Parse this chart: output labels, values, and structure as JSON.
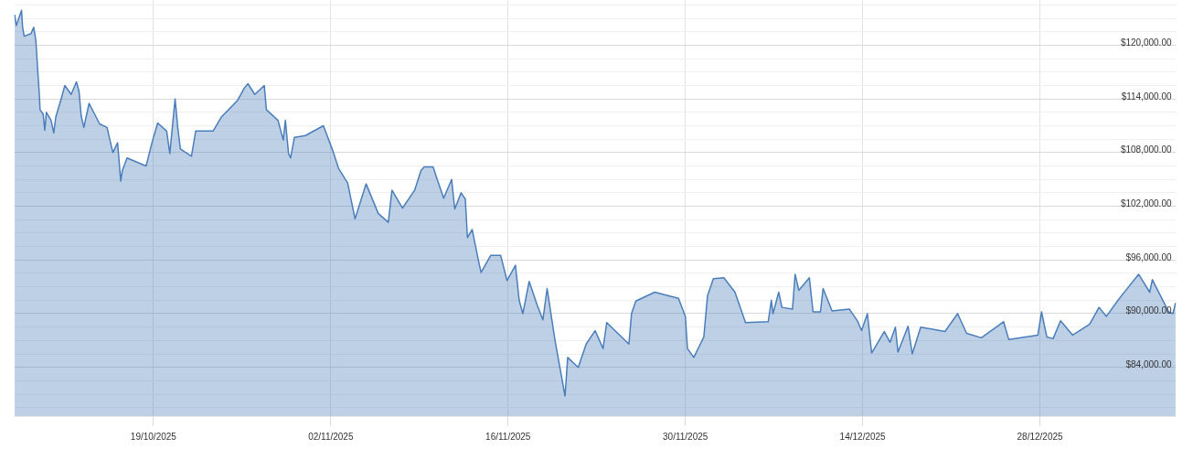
{
  "chart_data": {
    "type": "area",
    "x": [
      "2025-10-08T01:00",
      "2025-10-08T04:00",
      "2025-10-08T14:00",
      "2025-10-08T16:00",
      "2025-10-08T19:00",
      "2025-10-09T08:00",
      "2025-10-09T13:00",
      "2025-10-09T17:00",
      "2025-10-09T21:00",
      "2025-10-10T00:00",
      "2025-10-10T01:00",
      "2025-10-10T07:00",
      "2025-10-10T10:00",
      "2025-10-10T13:00",
      "2025-10-10T22:00",
      "2025-10-11T03:00",
      "2025-10-11T07:00",
      "2025-10-11T18:00",
      "2025-10-12T00:00",
      "2025-10-12T12:00",
      "2025-10-12T22:00",
      "2025-10-13T03:00",
      "2025-10-13T07:00",
      "2025-10-13T12:00",
      "2025-10-13T22:00",
      "2025-10-14T18:00",
      "2025-10-15T08:00",
      "2025-10-15T19:00",
      "2025-10-16T04:00",
      "2025-10-16T10:00",
      "2025-10-16T13:00",
      "2025-10-16T22:00",
      "2025-10-18T10:00",
      "2025-10-18T22:00",
      "2025-10-19T08:00",
      "2025-10-20T01:00",
      "2025-10-20T07:00",
      "2025-10-20T17:00",
      "2025-10-20T22:00",
      "2025-10-21T03:00",
      "2025-10-22T00:00",
      "2025-10-22T08:00",
      "2025-10-23T17:00",
      "2025-10-24T09:00",
      "2025-10-25T15:00",
      "2025-10-26T04:00",
      "2025-10-26T11:00",
      "2025-10-27T00:00",
      "2025-10-27T18:00",
      "2025-10-27T22:00",
      "2025-10-28T20:00",
      "2025-10-29T06:00",
      "2025-10-29T10:00",
      "2025-10-29T16:00",
      "2025-10-29T20:00",
      "2025-10-30T03:00",
      "2025-10-31T00:00",
      "2025-11-01T10:00",
      "2025-11-02T04:00",
      "2025-11-02T15:00",
      "2025-11-03T08:00",
      "2025-11-03T22:00",
      "2025-11-04T19:00",
      "2025-11-05T18:00",
      "2025-11-06T13:00",
      "2025-11-06T20:00",
      "2025-11-07T16:00",
      "2025-11-08T15:00",
      "2025-11-09T03:00",
      "2025-11-09T09:00",
      "2025-11-10T02:00",
      "2025-11-10T08:00",
      "2025-11-10T22:00",
      "2025-11-11T13:00",
      "2025-11-11T19:00",
      "2025-11-12T07:00",
      "2025-11-12T15:00",
      "2025-11-12T19:00",
      "2025-11-13T04:00",
      "2025-11-13T17:00",
      "2025-11-13T21:00",
      "2025-11-14T15:00",
      "2025-11-15T10:00",
      "2025-11-15T22:00",
      "2025-11-16T14:00",
      "2025-11-16T21:00",
      "2025-11-17T04:00",
      "2025-11-17T16:00",
      "2025-11-18T07:00",
      "2025-11-18T18:00",
      "2025-11-19T02:00",
      "2025-11-19T17:00",
      "2025-11-20T12:00",
      "2025-11-20T17:00",
      "2025-11-21T13:00",
      "2025-11-22T04:00",
      "2025-11-22T21:00",
      "2025-11-23T12:00",
      "2025-11-23T19:00",
      "2025-11-25T13:00",
      "2025-11-25T18:00",
      "2025-11-26T02:00",
      "2025-11-27T14:00",
      "2025-11-29T11:00",
      "2025-11-30T00:00",
      "2025-11-30T04:00",
      "2025-11-30T16:00",
      "2025-12-01T11:00",
      "2025-12-01T18:00",
      "2025-12-02T05:00",
      "2025-12-03T01:00",
      "2025-12-03T22:00",
      "2025-12-04T18:00",
      "2025-12-06T13:00",
      "2025-12-06T19:00",
      "2025-12-06T22:00",
      "2025-12-07T09:00",
      "2025-12-07T15:00",
      "2025-12-08T11:00",
      "2025-12-08T16:00",
      "2025-12-08T23:00",
      "2025-12-09T19:00",
      "2025-12-10T02:00",
      "2025-12-10T16:00",
      "2025-12-10T21:00",
      "2025-12-11T14:00",
      "2025-12-12T23:00",
      "2025-12-13T14:00",
      "2025-12-13T22:00",
      "2025-12-14T09:00",
      "2025-12-14T17:00",
      "2025-12-15T17:00",
      "2025-12-16T04:00",
      "2025-12-16T14:00",
      "2025-12-16T19:00",
      "2025-12-17T14:00",
      "2025-12-17T22:00",
      "2025-12-18T14:00",
      "2025-12-20T12:00",
      "2025-12-21T12:00",
      "2025-12-22T05:00",
      "2025-12-23T09:00",
      "2025-12-25T03:00",
      "2025-12-25T13:00",
      "2025-12-27T20:00",
      "2025-12-28T03:00",
      "2025-12-28T13:00",
      "2025-12-29T01:00",
      "2025-12-29T15:00",
      "2025-12-30T14:00",
      "2025-12-31T22:00",
      "2026-01-01T16:00",
      "2026-01-02T06:00",
      "2026-01-03T04:00",
      "2026-01-04T00:00",
      "2026-01-04T19:00",
      "2026-01-05T16:00",
      "2026-01-05T21:00",
      "2026-01-06T15:00",
      "2026-01-07T04:00",
      "2026-01-07T12:00",
      "2026-01-07T17:00"
    ],
    "series": [
      {
        "color": "#4a7ebb",
        "values": [
          123400,
          122200,
          123900,
          122000,
          121000,
          121300,
          122000,
          120600,
          116900,
          114200,
          112800,
          112300,
          110500,
          112500,
          111600,
          110200,
          112000,
          114200,
          115500,
          114500,
          115900,
          114800,
          112100,
          110800,
          113500,
          111200,
          110800,
          108000,
          109100,
          104800,
          106000,
          107400,
          106500,
          109300,
          111300,
          110400,
          107900,
          114000,
          110800,
          108400,
          107600,
          110400,
          110400,
          112000,
          113800,
          115200,
          115700,
          114500,
          115500,
          112800,
          111600,
          109400,
          111600,
          107900,
          107400,
          109700,
          109900,
          111000,
          108200,
          106200,
          104600,
          100600,
          104500,
          101200,
          100200,
          103800,
          101800,
          103800,
          106000,
          106400,
          106400,
          105300,
          102900,
          105000,
          101700,
          103500,
          102800,
          98500,
          99400,
          95600,
          94600,
          96500,
          96500,
          93700,
          95400,
          91500,
          90000,
          93600,
          91000,
          89300,
          92800,
          87000,
          80800,
          85100,
          84000,
          86600,
          88100,
          86100,
          89000,
          86600,
          90000,
          91400,
          92400,
          91700,
          89700,
          86100,
          85100,
          87400,
          92000,
          93900,
          94000,
          92400,
          89000,
          89100,
          91500,
          90000,
          92400,
          90700,
          90500,
          94400,
          92600,
          94000,
          90200,
          90200,
          92800,
          90300,
          90500,
          89200,
          88100,
          90000,
          85600,
          88000,
          86800,
          88500,
          85700,
          88600,
          85500,
          88500,
          88000,
          90000,
          87800,
          87300,
          89100,
          87100,
          87600,
          90200,
          87400,
          87200,
          89200,
          87600,
          88800,
          90700,
          89700,
          91500,
          93000,
          94400,
          92400,
          93800,
          91700,
          90200,
          90000,
          91200
        ]
      }
    ],
    "xlim": [
      "2025-10-08T00:00",
      "2026-01-07T18:00"
    ],
    "ylim": [
      78500,
      125000
    ],
    "xticks": [
      {
        "value": "2025-10-19",
        "label": "19/10/2025"
      },
      {
        "value": "2025-11-02",
        "label": "02/11/2025"
      },
      {
        "value": "2025-11-16",
        "label": "16/11/2025"
      },
      {
        "value": "2025-11-30",
        "label": "30/11/2025"
      },
      {
        "value": "2025-12-14",
        "label": "14/12/2025"
      },
      {
        "value": "2025-12-28",
        "label": "28/12/2025"
      }
    ],
    "yticks": [
      {
        "value": 79500,
        "label": null
      },
      {
        "value": 81000,
        "label": null
      },
      {
        "value": 82500,
        "label": null
      },
      {
        "value": 84000,
        "label": "$84,000.00"
      },
      {
        "value": 85500,
        "label": null
      },
      {
        "value": 87000,
        "label": null
      },
      {
        "value": 88500,
        "label": null
      },
      {
        "value": 90000,
        "label": "$90,000.00"
      },
      {
        "value": 91500,
        "label": null
      },
      {
        "value": 93000,
        "label": null
      },
      {
        "value": 94500,
        "label": null
      },
      {
        "value": 96000,
        "label": "$96,000.00"
      },
      {
        "value": 97500,
        "label": null
      },
      {
        "value": 99000,
        "label": null
      },
      {
        "value": 100500,
        "label": null
      },
      {
        "value": 102000,
        "label": "$102,000.00"
      },
      {
        "value": 103500,
        "label": null
      },
      {
        "value": 105000,
        "label": null
      },
      {
        "value": 106500,
        "label": null
      },
      {
        "value": 108000,
        "label": "$108,000.00"
      },
      {
        "value": 109500,
        "label": null
      },
      {
        "value": 111000,
        "label": null
      },
      {
        "value": 112500,
        "label": null
      },
      {
        "value": 114000,
        "label": "$114,000.00"
      },
      {
        "value": 115500,
        "label": null
      },
      {
        "value": 117000,
        "label": null
      },
      {
        "value": 118500,
        "label": null
      },
      {
        "value": 120000,
        "label": "$120,000.00"
      },
      {
        "value": 121500,
        "label": null
      },
      {
        "value": 123000,
        "label": null
      },
      {
        "value": 124500,
        "label": null
      }
    ],
    "grid": true
  }
}
